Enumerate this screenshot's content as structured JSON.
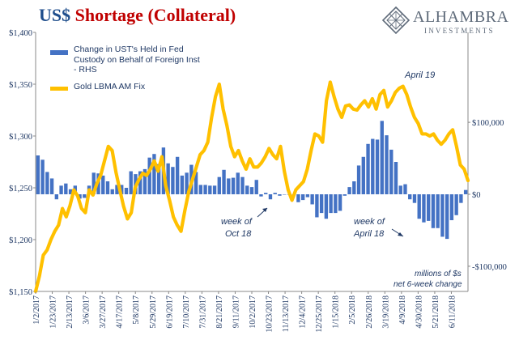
{
  "title": {
    "part1": "US$",
    "part2": "Shortage (Collateral)"
  },
  "logo": {
    "name": "ALHAMBRA",
    "sub": "INVESTMENTS",
    "icon": "diamond-lattice-icon"
  },
  "colors": {
    "bars": "#4472c4",
    "line": "#ffc000",
    "title_blue": "#1f4e8c",
    "title_red": "#c00000",
    "text": "#1f3864"
  },
  "annotations": {
    "april19": "April 19",
    "oct1": "week of",
    "oct2": "Oct 18",
    "apr1": "week of",
    "apr2": "April 18",
    "mil1": "millions of $s",
    "mil2": "net 6-week change"
  },
  "chart_data": {
    "type": "bar+line",
    "x_tick_labels": [
      "1/2/2017",
      "1/23/2017",
      "2/13/2017",
      "3/6/2017",
      "3/27/2017",
      "4/17/2017",
      "5/8/2017",
      "5/29/2017",
      "6/19/2017",
      "7/10/2017",
      "7/31/2017",
      "8/21/2017",
      "9/11/2017",
      "10/2/2017",
      "10/23/2017",
      "11/13/2017",
      "12/4/2017",
      "12/25/2017",
      "1/15/2018",
      "2/5/2018",
      "2/26/2018",
      "3/19/2018",
      "4/9/2018",
      "4/30/2018",
      "5/21/2018",
      "6/11/2018"
    ],
    "y_left": {
      "ticks": [
        "$1,150",
        "$1,200",
        "$1,250",
        "$1,300",
        "$1,350",
        "$1,400"
      ],
      "lim": [
        1150,
        1400
      ]
    },
    "y_right": {
      "ticks": [
        "-$100,000",
        "$0",
        "$100,000"
      ],
      "lim": [
        -135000,
        225000
      ]
    },
    "series": [
      {
        "name": "Change in UST's Held in Fed Custody on Behalf of Foreign Inst - RHS",
        "kind": "bar",
        "axis": "right",
        "values": [
          54000,
          48000,
          31000,
          22000,
          -7000,
          12000,
          15000,
          7000,
          12000,
          -6000,
          -5000,
          12000,
          30000,
          29000,
          26000,
          18000,
          7000,
          13000,
          13000,
          9000,
          32000,
          28000,
          32000,
          35000,
          51000,
          56000,
          42000,
          65000,
          43000,
          38000,
          52000,
          26000,
          30000,
          41000,
          31000,
          13000,
          13000,
          12000,
          12000,
          24000,
          34000,
          22000,
          23000,
          30000,
          24000,
          12000,
          10000,
          20000,
          -3000,
          2000,
          -7000,
          2000,
          -2000,
          0,
          0,
          0,
          -11000,
          -8000,
          -4000,
          -14000,
          -32000,
          -26000,
          -34000,
          -26000,
          -26000,
          -23000,
          -2000,
          10000,
          18000,
          40000,
          52000,
          70000,
          77000,
          76000,
          102000,
          82000,
          62000,
          45000,
          12000,
          14000,
          -7000,
          -12000,
          -34000,
          -39000,
          -37000,
          -47000,
          -47000,
          -59000,
          -62000,
          -36000,
          -29000,
          -12000,
          6000
        ]
      },
      {
        "name": "Gold LBMA AM Fix",
        "kind": "line",
        "axis": "left",
        "values": [
          1150,
          1165,
          1185,
          1190,
          1200,
          1208,
          1214,
          1230,
          1222,
          1233,
          1248,
          1242,
          1230,
          1226,
          1248,
          1243,
          1254,
          1262,
          1276,
          1290,
          1286,
          1265,
          1248,
          1232,
          1220,
          1226,
          1250,
          1258,
          1264,
          1262,
          1268,
          1276,
          1266,
          1280,
          1252,
          1238,
          1222,
          1214,
          1208,
          1228,
          1246,
          1258,
          1270,
          1282,
          1286,
          1294,
          1318,
          1338,
          1350,
          1326,
          1310,
          1290,
          1280,
          1286,
          1276,
          1268,
          1278,
          1270,
          1270,
          1274,
          1280,
          1288,
          1282,
          1278,
          1290,
          1266,
          1248,
          1238,
          1248,
          1252,
          1256,
          1268,
          1286,
          1302,
          1300,
          1294,
          1334,
          1352,
          1338,
          1326,
          1318,
          1329,
          1330,
          1326,
          1325,
          1330,
          1334,
          1328,
          1336,
          1326,
          1340,
          1344,
          1328,
          1334,
          1342,
          1346,
          1348,
          1340,
          1328,
          1318,
          1312,
          1302,
          1302,
          1300,
          1302,
          1296,
          1292,
          1296,
          1302,
          1306,
          1290,
          1272,
          1268,
          1257
        ]
      }
    ],
    "legend_position": "top-left",
    "grid": false
  }
}
